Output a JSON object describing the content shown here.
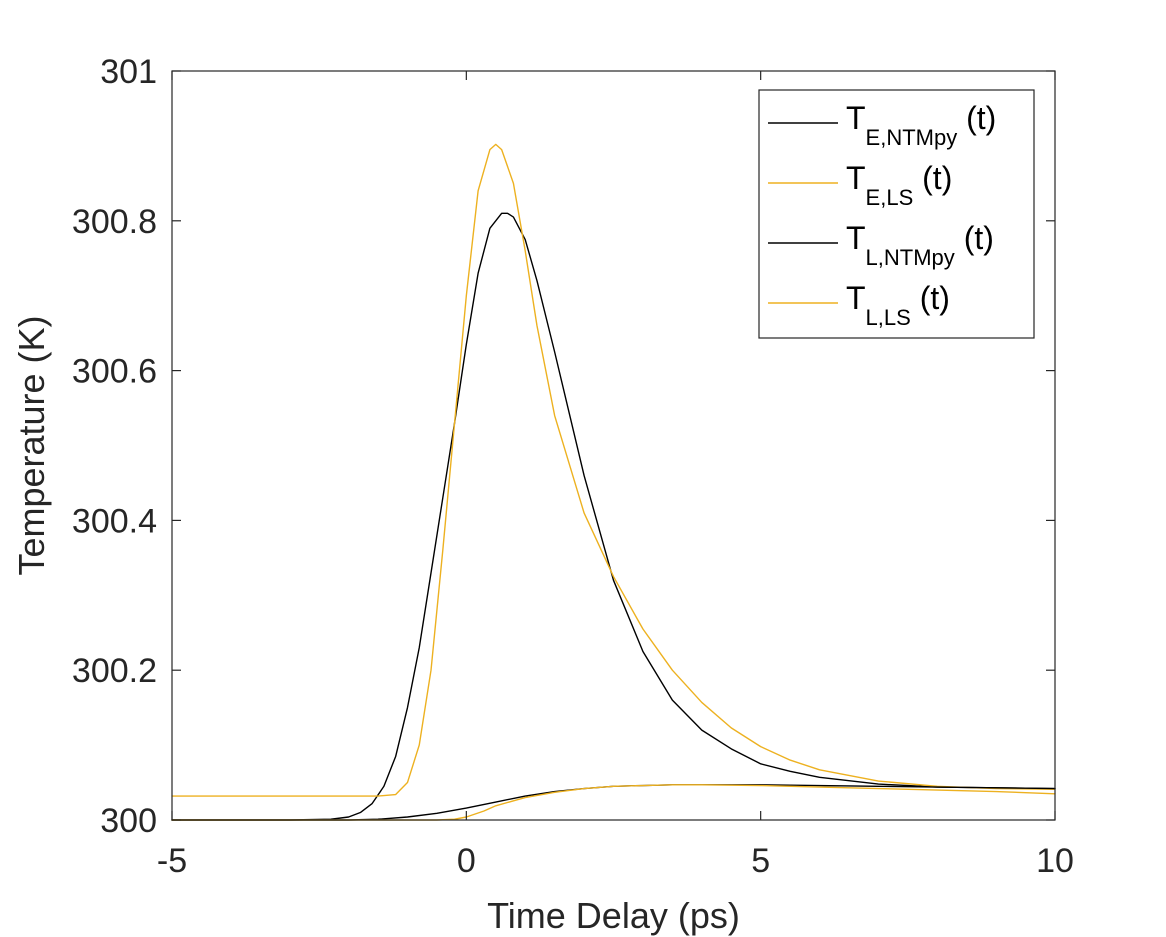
{
  "chart_data": {
    "type": "line",
    "xlabel": "Time Delay (ps)",
    "ylabel": "Temperature (K)",
    "xlim": [
      -5,
      10
    ],
    "ylim": [
      300,
      301
    ],
    "xticks": [
      "-5",
      "0",
      "5",
      "10"
    ],
    "yticks": [
      "300",
      "300.2",
      "300.4",
      "300.6",
      "300.8",
      "301"
    ],
    "grid": false,
    "legend_position": "top-right",
    "series": [
      {
        "name": "T_{E,NTMpy} (t)",
        "legend_main": "T",
        "legend_sub": "E,NTMpy",
        "legend_suffix": "(t)",
        "color": "#000000",
        "x": [
          -5,
          -3,
          -2.3,
          -2,
          -1.8,
          -1.6,
          -1.4,
          -1.2,
          -1,
          -0.8,
          -0.6,
          -0.4,
          -0.2,
          0,
          0.2,
          0.4,
          0.6,
          0.7,
          0.8,
          1,
          1.2,
          1.5,
          2,
          2.5,
          3,
          3.5,
          4,
          4.5,
          5,
          5.5,
          6,
          7,
          8,
          9,
          10
        ],
        "y": [
          300,
          300,
          300.001,
          300.004,
          300.01,
          300.022,
          300.045,
          300.085,
          300.15,
          300.23,
          300.33,
          300.43,
          300.53,
          300.635,
          300.73,
          300.79,
          300.81,
          300.81,
          300.805,
          300.775,
          300.72,
          300.625,
          300.46,
          300.32,
          300.225,
          300.16,
          300.12,
          300.095,
          300.075,
          300.065,
          300.057,
          300.048,
          300.044,
          300.043,
          300.042
        ]
      },
      {
        "name": "T_{E,LS} (t)",
        "legend_main": "T",
        "legend_sub": "E,LS",
        "legend_suffix": "(t)",
        "color": "#EDB120",
        "x": [
          -5,
          -2,
          -1.5,
          -1.2,
          -1,
          -0.8,
          -0.6,
          -0.4,
          -0.2,
          0,
          0.2,
          0.4,
          0.5,
          0.6,
          0.8,
          1,
          1.2,
          1.5,
          2,
          2.5,
          3,
          3.5,
          4,
          4.5,
          5,
          5.5,
          6,
          7,
          8,
          9,
          10
        ],
        "y": [
          300.032,
          300.032,
          300.032,
          300.034,
          300.05,
          300.1,
          300.2,
          300.36,
          300.53,
          300.7,
          300.84,
          300.895,
          300.902,
          300.895,
          300.85,
          300.76,
          300.66,
          300.54,
          300.41,
          300.325,
          300.255,
          300.2,
          300.157,
          300.123,
          300.098,
          300.08,
          300.067,
          300.052,
          300.045,
          300.042,
          300.041
        ]
      },
      {
        "name": "T_{L,NTMpy} (t)",
        "legend_main": "T",
        "legend_sub": "L,NTMpy",
        "legend_suffix": "(t)",
        "color": "#000000",
        "x": [
          -5,
          -2,
          -1.5,
          -1,
          -0.5,
          0,
          0.5,
          1,
          1.5,
          2,
          2.5,
          3,
          3.5,
          4,
          5,
          6,
          7,
          8,
          9,
          10
        ],
        "y": [
          300,
          300,
          300.001,
          300.004,
          300.009,
          300.016,
          300.024,
          300.032,
          300.038,
          300.042,
          300.045,
          300.046,
          300.047,
          300.047,
          300.047,
          300.046,
          300.045,
          300.044,
          300.043,
          300.042
        ]
      },
      {
        "name": "T_{L,LS} (t)",
        "legend_main": "T",
        "legend_sub": "L,LS",
        "legend_suffix": "(t)",
        "color": "#EDB120",
        "x": [
          -5,
          -1,
          -0.5,
          -0.2,
          0,
          0.3,
          0.5,
          1,
          1.5,
          2,
          2.5,
          3,
          3.5,
          4,
          5,
          6,
          7,
          8,
          9,
          10
        ],
        "y": [
          300,
          300,
          300,
          300.001,
          300.004,
          300.012,
          300.019,
          300.03,
          300.037,
          300.042,
          300.045,
          300.046,
          300.047,
          300.047,
          300.046,
          300.044,
          300.042,
          300.04,
          300.038,
          300.035
        ]
      }
    ]
  }
}
